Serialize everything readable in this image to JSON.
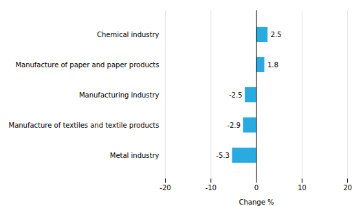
{
  "chart_data": {
    "type": "bar",
    "orientation": "horizontal",
    "categories": [
      "Metal industry",
      "Manufacture of textiles and textile products",
      "Manufacturing industry",
      "Manufacture of paper and paper products",
      "Chemical industry"
    ],
    "values": [
      -5.3,
      -2.9,
      -2.5,
      1.8,
      2.5
    ],
    "color": "#29ABE2",
    "xlabel": "Change %",
    "xlim": [
      -20,
      20
    ],
    "xticks": [
      -20,
      -10,
      0,
      10,
      20
    ],
    "grid": true,
    "data_labels": true
  }
}
